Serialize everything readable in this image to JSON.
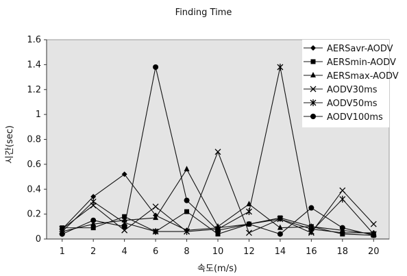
{
  "chart_data": {
    "type": "line",
    "title": "Finding Time",
    "xlabel": "속도(m/s)",
    "ylabel": "시간(sec)",
    "categories": [
      "1",
      "2",
      "4",
      "6",
      "8",
      "10",
      "12",
      "14",
      "16",
      "18",
      "20"
    ],
    "ylim": [
      0,
      1.6
    ],
    "yticks": [
      "0",
      "0.2",
      "0.4",
      "0.6",
      "0.8",
      "1",
      "1.2",
      "1.4",
      "1.6"
    ],
    "grid": false,
    "legend_position": "top-right",
    "series": [
      {
        "name": "AERSavr-AODV",
        "marker": "diamond",
        "values": [
          0.08,
          0.34,
          0.52,
          0.19,
          0.07,
          0.09,
          0.12,
          0.16,
          0.08,
          0.05,
          0.05
        ]
      },
      {
        "name": "AERSmin-AODV",
        "marker": "square",
        "values": [
          0.09,
          0.09,
          0.18,
          0.06,
          0.22,
          0.04,
          0.12,
          0.17,
          0.1,
          0.04,
          0.03
        ]
      },
      {
        "name": "AERSmax-AODV",
        "marker": "triangle",
        "values": [
          0.06,
          0.12,
          0.15,
          0.17,
          0.56,
          0.1,
          0.28,
          0.09,
          0.1,
          0.07,
          0.04
        ]
      },
      {
        "name": "AODV30ms",
        "marker": "x",
        "values": [
          0.08,
          0.27,
          0.07,
          0.26,
          0.06,
          0.7,
          0.05,
          0.16,
          0.05,
          0.39,
          0.12
        ]
      },
      {
        "name": "AODV50ms",
        "marker": "star",
        "values": [
          0.06,
          0.3,
          0.13,
          0.06,
          0.06,
          0.08,
          0.22,
          1.38,
          0.06,
          0.32,
          0.04
        ]
      },
      {
        "name": "AODV100ms",
        "marker": "circle",
        "values": [
          0.04,
          0.15,
          0.1,
          1.38,
          0.31,
          0.07,
          0.12,
          0.04,
          0.25,
          0.09,
          0.03
        ]
      }
    ]
  }
}
